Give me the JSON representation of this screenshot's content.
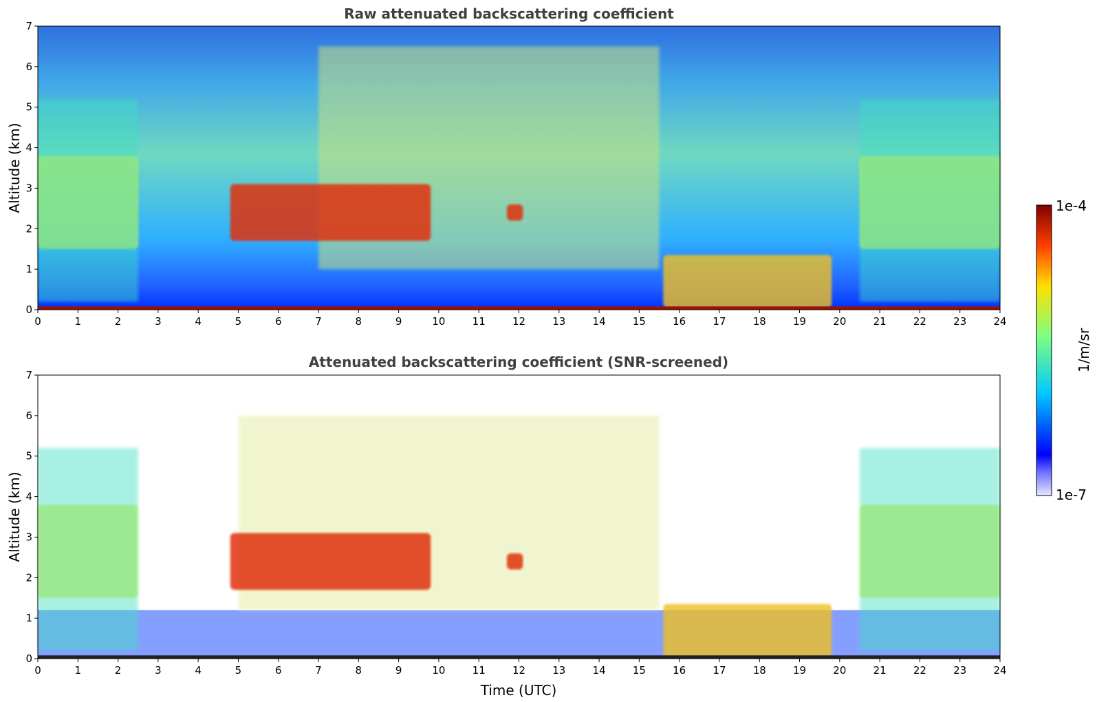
{
  "chart_data": [
    {
      "type": "heatmap",
      "title": "Raw attenuated backscattering coefficient",
      "xlabel": "",
      "ylabel": "Altitude (km)",
      "xlim": [
        0,
        24
      ],
      "ylim": [
        0,
        7
      ],
      "xticks": [
        "0",
        "1",
        "2",
        "3",
        "4",
        "5",
        "6",
        "7",
        "8",
        "9",
        "10",
        "11",
        "12",
        "13",
        "14",
        "15",
        "16",
        "17",
        "18",
        "19",
        "20",
        "21",
        "22",
        "23",
        "24"
      ],
      "yticks": [
        "0",
        "1",
        "2",
        "3",
        "4",
        "5",
        "6",
        "7"
      ],
      "screened": false,
      "features": [
        {
          "name": "aerosol-layer",
          "time": [
            0,
            2.5
          ],
          "altitude": [
            1.5,
            3.8
          ]
        },
        {
          "name": "aerosol-layer",
          "time": [
            20.5,
            24
          ],
          "altitude": [
            1.5,
            3.8
          ]
        },
        {
          "name": "elevated-layer",
          "time": [
            4.8,
            9.8
          ],
          "altitude": [
            1.7,
            3.1
          ]
        },
        {
          "name": "elevated-layer",
          "time": [
            11.7,
            12.1
          ],
          "altitude": [
            2.2,
            2.6
          ]
        },
        {
          "name": "boundary-layer-cloud",
          "time": [
            15.6,
            19.8
          ],
          "altitude": [
            0.05,
            1.35
          ]
        }
      ]
    },
    {
      "type": "heatmap",
      "title": "Attenuated backscattering coefficient (SNR-screened)",
      "xlabel": "Time (UTC)",
      "ylabel": "Altitude (km)",
      "xlim": [
        0,
        24
      ],
      "ylim": [
        0,
        7
      ],
      "xticks": [
        "0",
        "1",
        "2",
        "3",
        "4",
        "5",
        "6",
        "7",
        "8",
        "9",
        "10",
        "11",
        "12",
        "13",
        "14",
        "15",
        "16",
        "17",
        "18",
        "19",
        "20",
        "21",
        "22",
        "23",
        "24"
      ],
      "yticks": [
        "0",
        "1",
        "2",
        "3",
        "4",
        "5",
        "6",
        "7"
      ],
      "screened": true,
      "features": [
        {
          "name": "aerosol-layer",
          "time": [
            0,
            2.5
          ],
          "altitude": [
            1.5,
            3.8
          ]
        },
        {
          "name": "aerosol-layer",
          "time": [
            20.5,
            24
          ],
          "altitude": [
            1.5,
            3.8
          ]
        },
        {
          "name": "elevated-layer",
          "time": [
            4.8,
            9.8
          ],
          "altitude": [
            1.7,
            3.1
          ]
        },
        {
          "name": "elevated-layer",
          "time": [
            11.7,
            12.1
          ],
          "altitude": [
            2.2,
            2.6
          ]
        },
        {
          "name": "boundary-layer-cloud",
          "time": [
            15.6,
            19.8
          ],
          "altitude": [
            0.05,
            1.35
          ]
        }
      ]
    }
  ],
  "colorbar": {
    "label": "1/m/sr",
    "min_label": "1e-7",
    "max_label": "1e-4",
    "colormap": "jet",
    "colors": [
      "#e6e6ff",
      "#0000ff",
      "#00c8ff",
      "#80ff80",
      "#ffe000",
      "#ff4000",
      "#800000"
    ]
  }
}
